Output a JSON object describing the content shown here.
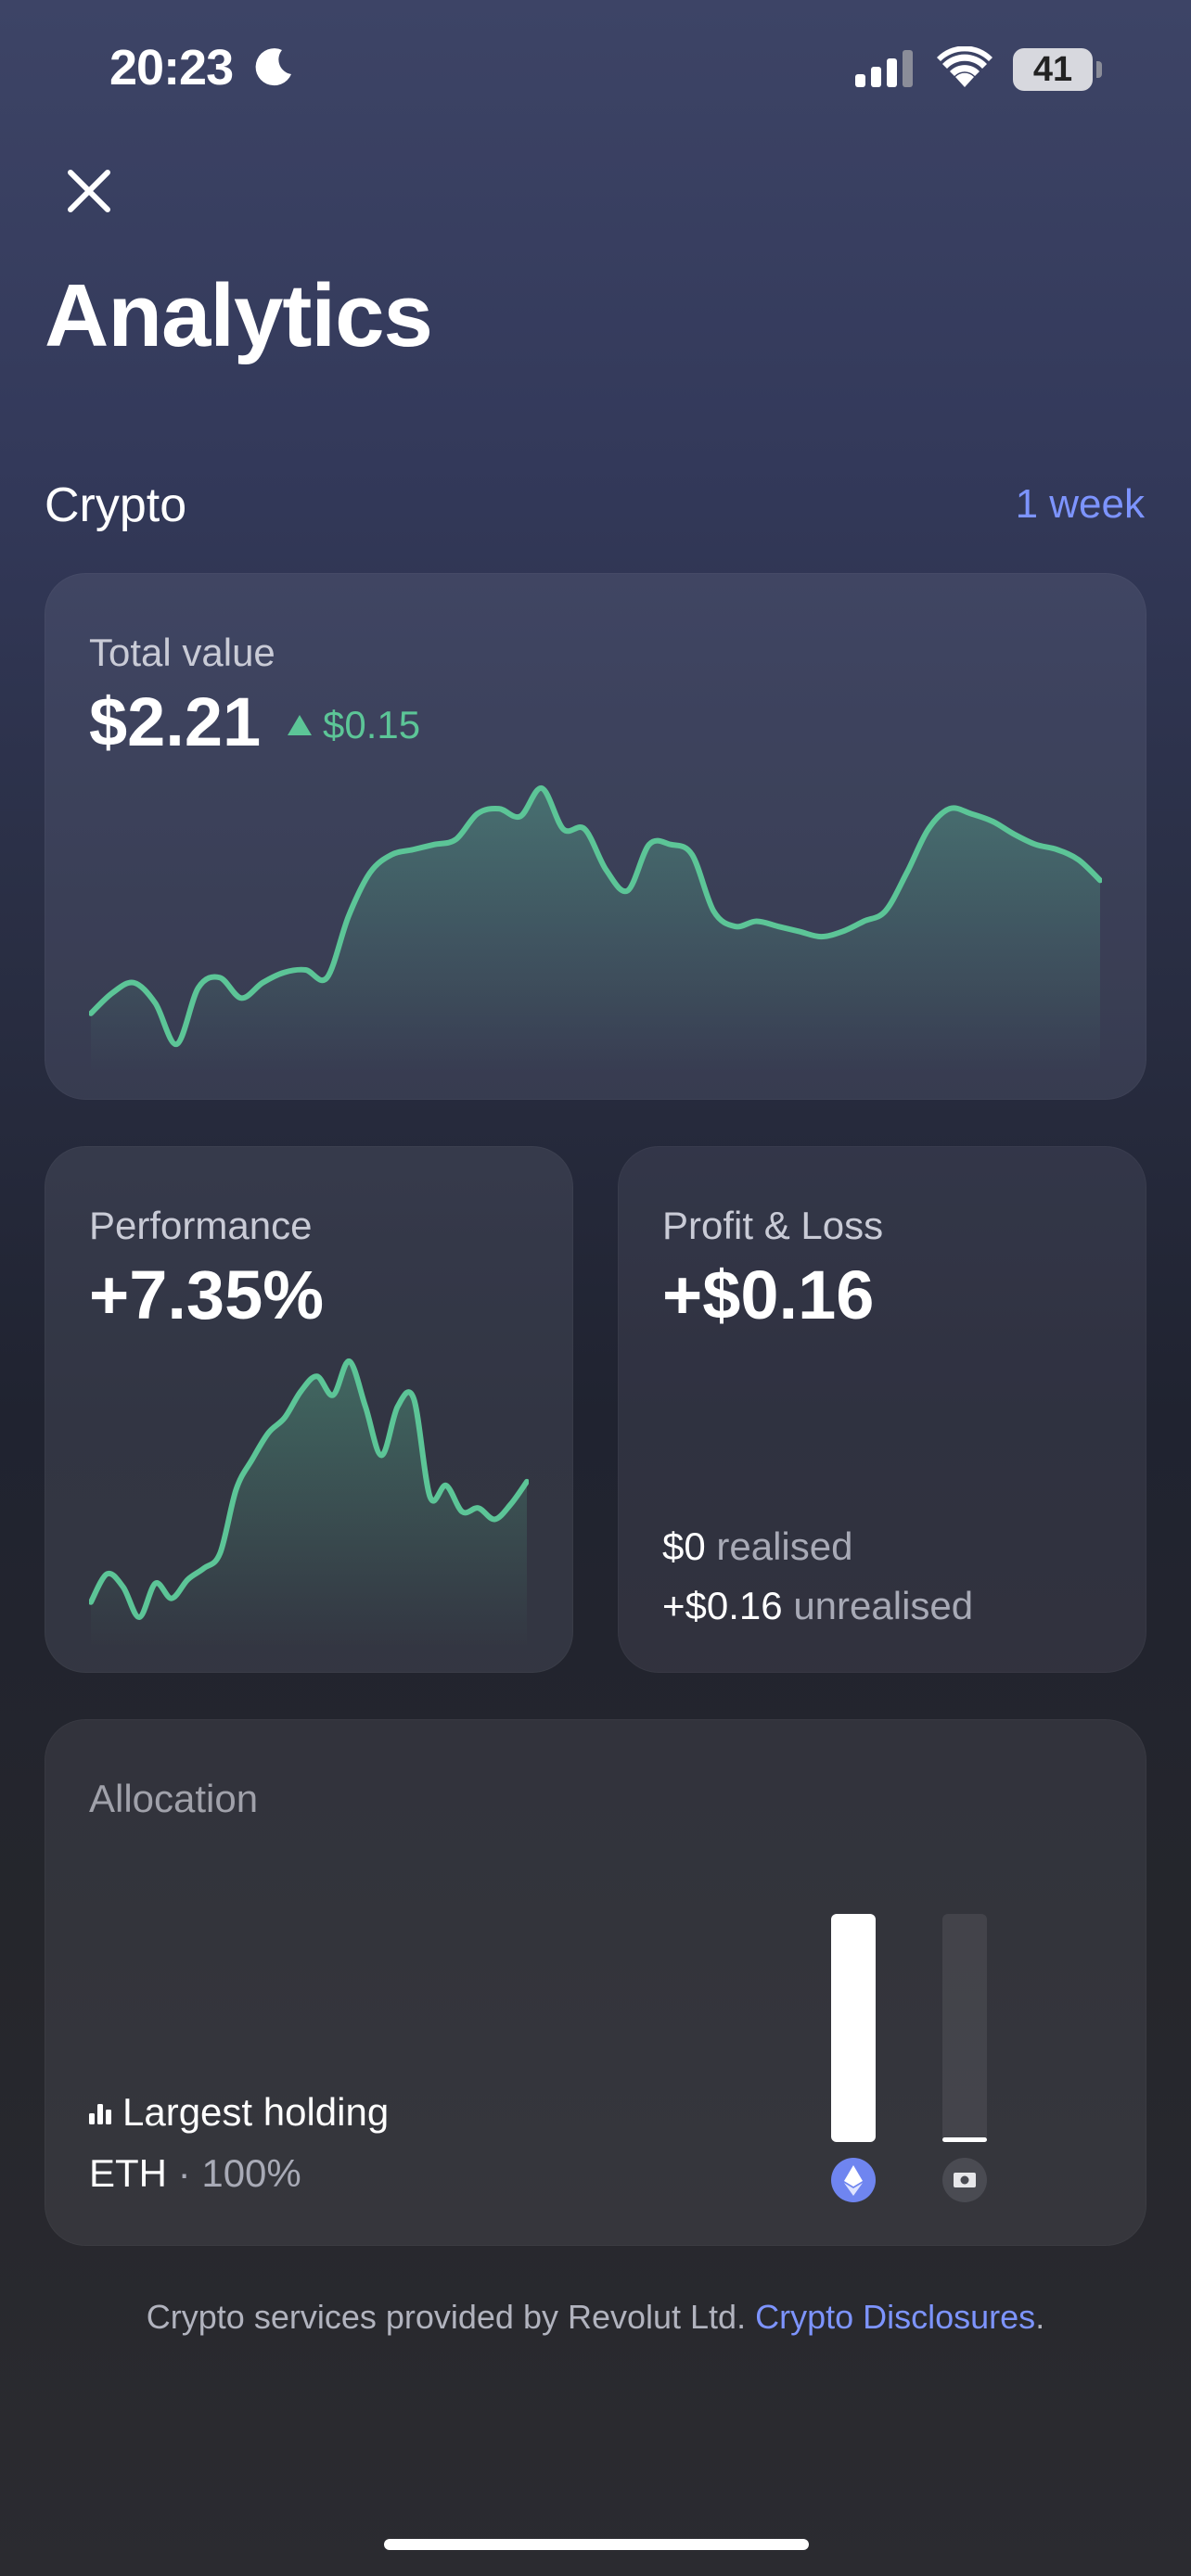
{
  "status_bar": {
    "time": "20:23",
    "battery": "41"
  },
  "header": {
    "title": "Analytics"
  },
  "section": {
    "label": "Crypto",
    "period": "1 week"
  },
  "total_value": {
    "label": "Total value",
    "value": "$2.21",
    "change": "$0.15"
  },
  "performance": {
    "label": "Performance",
    "value": "+7.35%"
  },
  "profit_loss": {
    "label": "Profit & Loss",
    "value": "+$0.16",
    "realised_amount": "$0",
    "realised_label": "realised",
    "unrealised_amount": "+$0.16",
    "unrealised_label": "unrealised"
  },
  "allocation": {
    "label": "Allocation",
    "largest_label": "Largest holding",
    "asset": "ETH",
    "separator": "·",
    "percent": "100%",
    "bars": [
      {
        "asset_icon": "ethereum-icon",
        "fill_fraction": 1.0
      },
      {
        "asset_icon": "cash-icon",
        "fill_fraction": 0.0
      }
    ]
  },
  "footer": {
    "text": "Crypto services provided by Revolut Ltd.",
    "link": "Crypto Disclosures",
    "suffix": "."
  },
  "colors": {
    "accent_blue": "#7d94ff",
    "positive_green": "#5cc597"
  },
  "chart_data": [
    {
      "type": "area",
      "series": [
        {
          "values": [
            40,
            48,
            52,
            44,
            28,
            50,
            54,
            46,
            52,
            56,
            57,
            54,
            78,
            95,
            102,
            104,
            106,
            108,
            118,
            120,
            117,
            128,
            112,
            112,
            96,
            88,
            106,
            106,
            102,
            80,
            74,
            76,
            74,
            72,
            70,
            72,
            76,
            80,
            95,
            112,
            120,
            118,
            115,
            110,
            106,
            104,
            100,
            92
          ]
        }
      ]
    },
    {
      "type": "area",
      "series": [
        {
          "values": [
            20,
            35,
            28,
            12,
            30,
            22,
            32,
            38,
            46,
            80,
            96,
            110,
            118,
            132,
            140,
            130,
            148,
            124,
            98,
            124,
            128,
            76,
            82,
            68,
            70,
            64,
            72,
            84
          ]
        }
      ]
    }
  ]
}
